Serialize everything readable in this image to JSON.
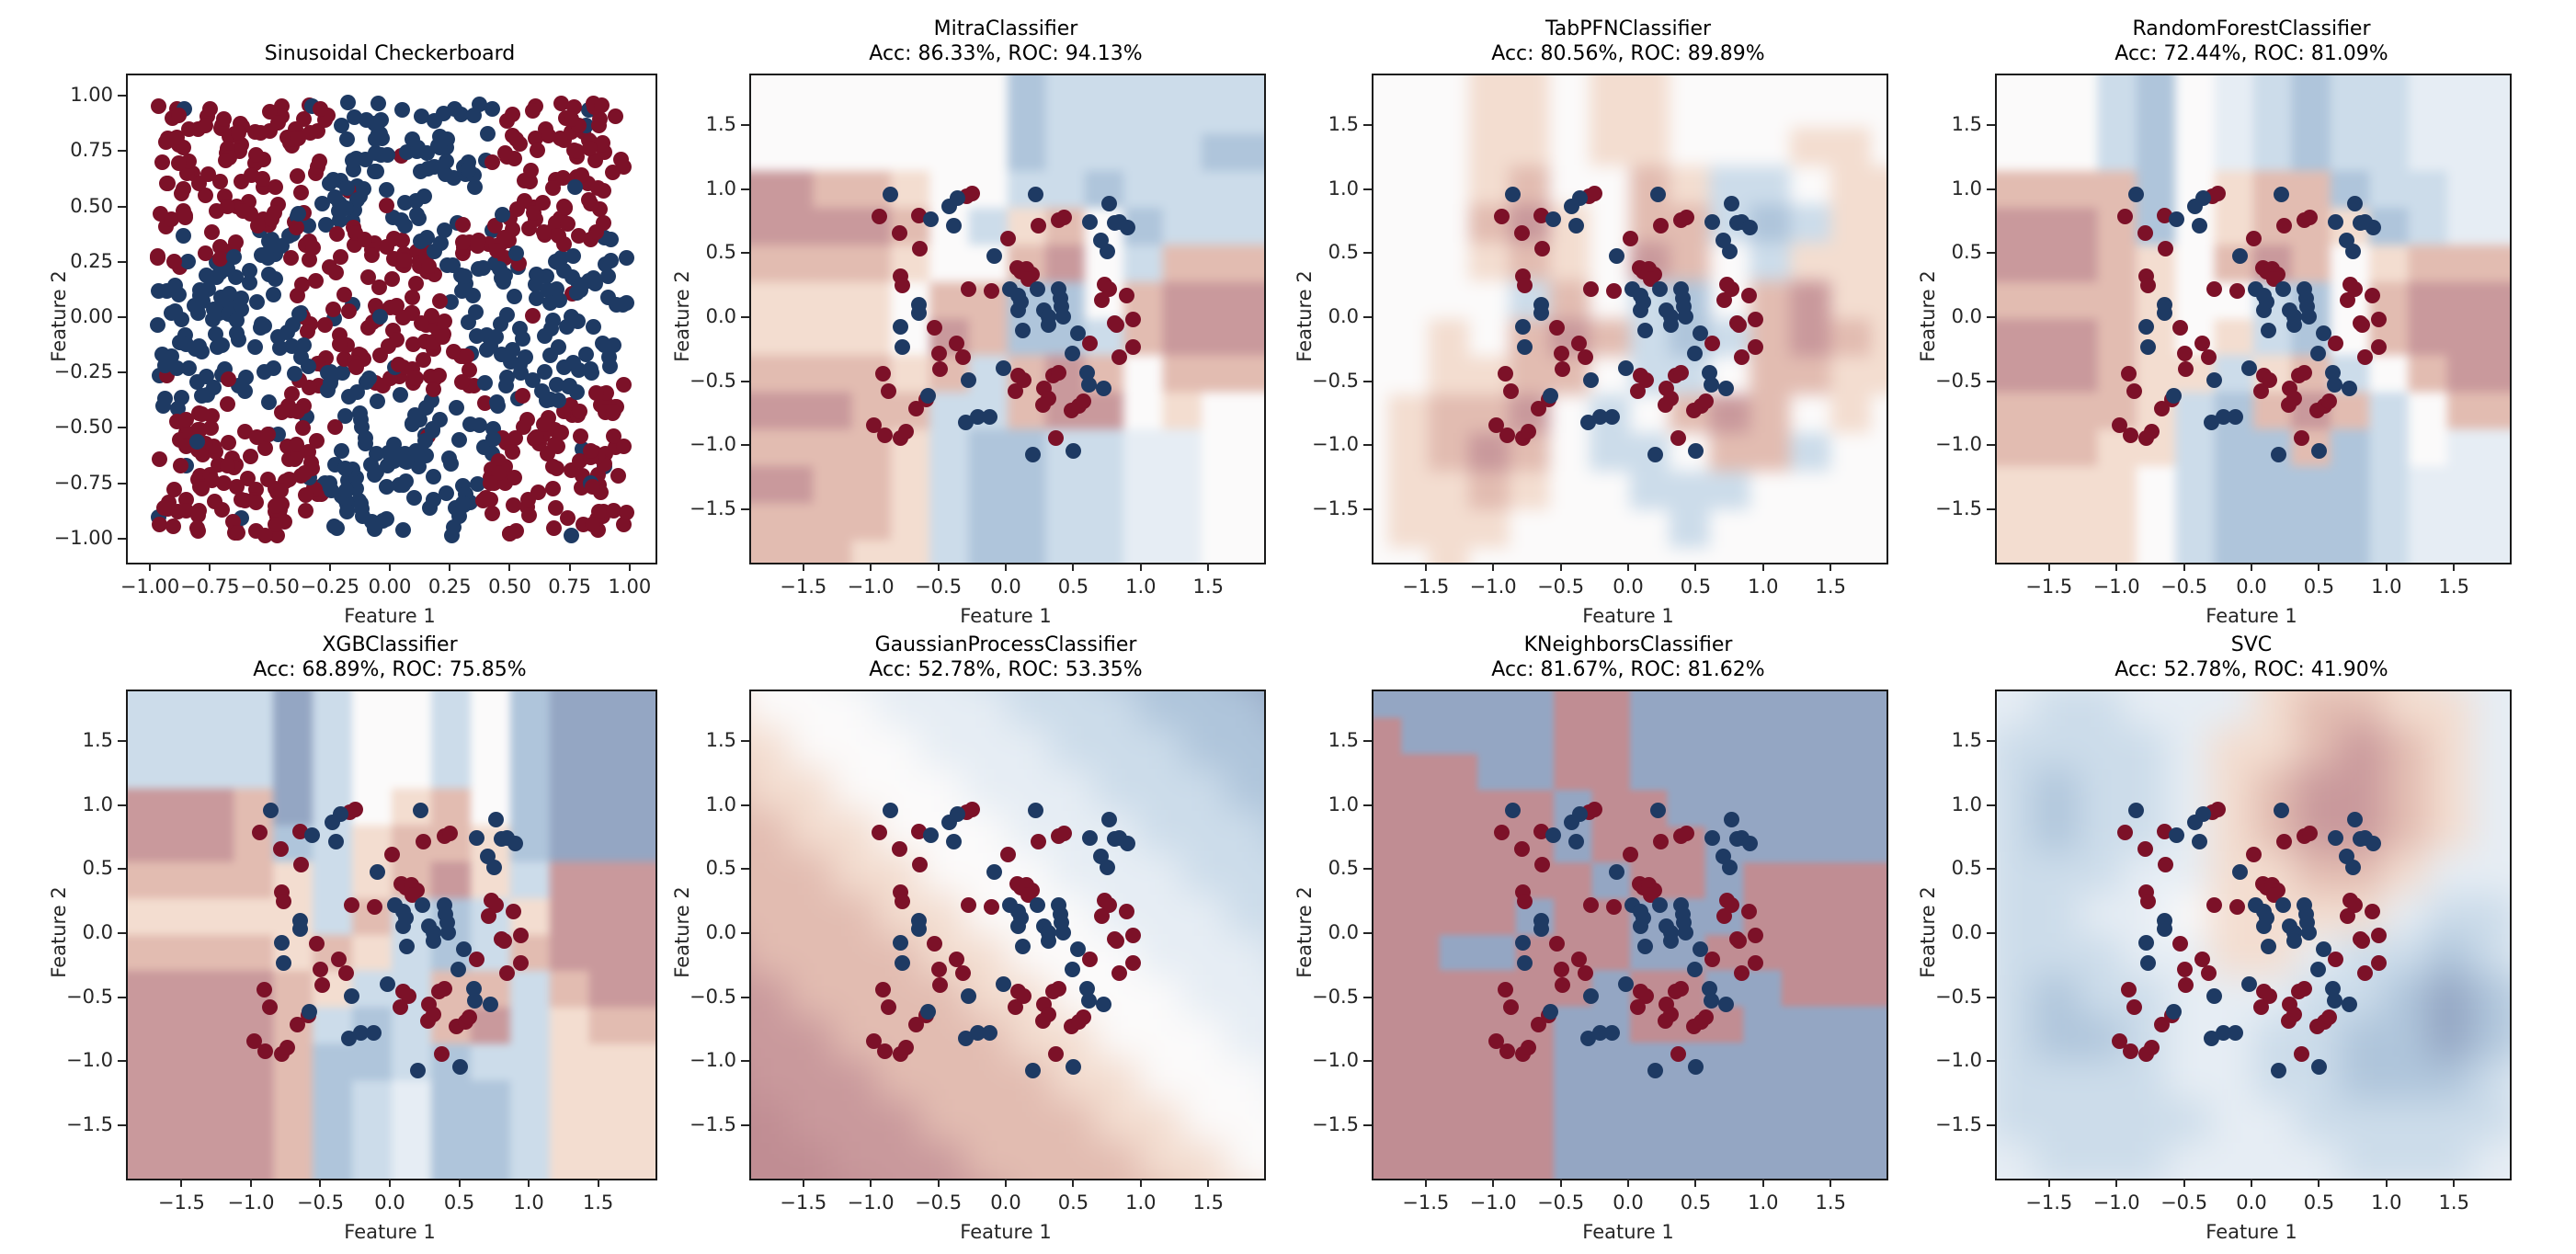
{
  "figure": {
    "background": "#ffffff"
  },
  "chart_data": {
    "type": "scatter",
    "description": "Decision-boundary comparison of classifiers on a sinusoidal checkerboard dataset; 2x4 grid of subplots. Panel 1 shows ground-truth data, panels 2-8 show each model's contourf decision surface (RdBu colormap) with the shared training points overlaid.",
    "layout": {
      "rows": 2,
      "cols": 4,
      "grid_on": false,
      "legend": "none"
    },
    "axes": {
      "xlabel": "Feature 1",
      "ylabel": "Feature 2"
    },
    "colors": {
      "class_red_dot": "#7c1128",
      "class_blue_dot": "#1e3a63",
      "colormap": "RdBu",
      "region_levels": {
        "3": "#c08d93",
        "2": "#c9999c",
        "1": "#e2bcb1",
        "0": "#f3ddd0",
        ".": "#fbfafa",
        "a": "#e6edf4",
        "b": "#ccdcea",
        "c": "#afc5db",
        "d": "#94a6c3"
      }
    },
    "truth_ticks": {
      "values": [
        -1.0,
        -0.75,
        -0.5,
        -0.25,
        0.0,
        0.25,
        0.5,
        0.75,
        1.0
      ],
      "labels": [
        "−1.00",
        "−0.75",
        "−0.50",
        "−0.25",
        "0.00",
        "0.25",
        "0.50",
        "0.75",
        "1.00"
      ]
    },
    "clf_ticks": {
      "values": [
        -1.5,
        -1.0,
        -0.5,
        0.0,
        0.5,
        1.0,
        1.5
      ],
      "labels": [
        "−1.5",
        "−1.0",
        "−0.5",
        "0.0",
        "0.5",
        "1.0",
        "1.5"
      ]
    },
    "truth_scatter_generator": {
      "n": 950,
      "seed": 11,
      "range": [
        -0.98,
        0.98
      ],
      "cells": 3,
      "wobble_amp": 0.1,
      "wobble_freq": 4.6,
      "label_noise": 0.06,
      "red_parity": "even",
      "pattern": "checkerboard with sinusoidal boundaries, classes red/blue"
    },
    "train_points": {
      "red": [
        [
          -0.3,
          0.96
        ],
        [
          -0.26,
          0.98
        ],
        [
          -0.95,
          0.8
        ],
        [
          -0.66,
          0.81
        ],
        [
          -0.8,
          0.67
        ],
        [
          -0.65,
          0.55
        ],
        [
          -0.79,
          0.33
        ],
        [
          -0.78,
          0.26
        ],
        [
          0.0,
          0.63
        ],
        [
          0.07,
          0.4
        ],
        [
          0.1,
          0.37
        ],
        [
          0.14,
          0.39
        ],
        [
          0.18,
          0.35
        ],
        [
          0.15,
          0.31
        ],
        [
          0.23,
          0.73
        ],
        [
          0.38,
          0.77
        ],
        [
          0.42,
          0.79
        ],
        [
          -0.29,
          0.23
        ],
        [
          -0.12,
          0.22
        ],
        [
          -0.54,
          -0.07
        ],
        [
          -0.51,
          -0.27
        ],
        [
          -0.38,
          -0.19
        ],
        [
          -0.33,
          -0.3
        ],
        [
          -0.5,
          -0.39
        ],
        [
          0.72,
          0.27
        ],
        [
          0.75,
          0.23
        ],
        [
          0.7,
          0.15
        ],
        [
          0.79,
          -0.03
        ],
        [
          0.88,
          0.18
        ],
        [
          0.93,
          0.0
        ],
        [
          0.81,
          -0.05
        ],
        [
          0.61,
          -0.19
        ],
        [
          0.93,
          -0.22
        ],
        [
          0.83,
          -0.3
        ],
        [
          0.34,
          -0.44
        ],
        [
          0.38,
          -0.42
        ],
        [
          0.08,
          -0.44
        ],
        [
          0.12,
          -0.48
        ],
        [
          0.06,
          -0.56
        ],
        [
          0.27,
          -0.54
        ],
        [
          0.3,
          -0.62
        ],
        [
          0.26,
          -0.67
        ],
        [
          0.47,
          -0.71
        ],
        [
          0.53,
          -0.68
        ],
        [
          0.56,
          -0.64
        ],
        [
          0.36,
          -0.93
        ],
        [
          -0.92,
          -0.43
        ],
        [
          -0.88,
          -0.56
        ],
        [
          -0.6,
          -0.63
        ],
        [
          -0.68,
          -0.7
        ],
        [
          -0.99,
          -0.83
        ],
        [
          -0.91,
          -0.91
        ],
        [
          -0.79,
          -0.93
        ],
        [
          -0.75,
          -0.88
        ]
      ],
      "blue": [
        [
          -0.87,
          0.97
        ],
        [
          -0.43,
          0.88
        ],
        [
          -0.37,
          0.94
        ],
        [
          -0.4,
          0.73
        ],
        [
          -0.57,
          0.78
        ],
        [
          -0.1,
          0.49
        ],
        [
          0.21,
          0.97
        ],
        [
          0.61,
          0.76
        ],
        [
          0.75,
          0.9
        ],
        [
          0.79,
          0.75
        ],
        [
          0.83,
          0.76
        ],
        [
          0.89,
          0.71
        ],
        [
          0.69,
          0.61
        ],
        [
          0.74,
          0.53
        ],
        [
          -0.66,
          0.11
        ],
        [
          -0.66,
          0.05
        ],
        [
          -0.79,
          -0.06
        ],
        [
          -0.78,
          -0.22
        ],
        [
          0.02,
          0.23
        ],
        [
          0.08,
          0.18
        ],
        [
          0.1,
          0.13
        ],
        [
          0.08,
          0.07
        ],
        [
          0.22,
          0.23
        ],
        [
          0.27,
          0.07
        ],
        [
          0.3,
          0.02
        ],
        [
          0.3,
          -0.05
        ],
        [
          0.38,
          0.23
        ],
        [
          0.39,
          0.16
        ],
        [
          0.4,
          0.1
        ],
        [
          0.41,
          0.02
        ],
        [
          0.11,
          -0.09
        ],
        [
          0.52,
          -0.11
        ],
        [
          0.48,
          -0.27
        ],
        [
          0.59,
          -0.42
        ],
        [
          0.6,
          -0.51
        ],
        [
          0.71,
          -0.54
        ],
        [
          -0.03,
          -0.38
        ],
        [
          -0.29,
          -0.48
        ],
        [
          -0.22,
          -0.76
        ],
        [
          -0.13,
          -0.76
        ],
        [
          -0.31,
          -0.81
        ],
        [
          0.19,
          -1.06
        ],
        [
          0.49,
          -1.03
        ],
        [
          -0.59,
          -0.6
        ]
      ]
    },
    "panels": [
      {
        "key": "truth",
        "title": "Sinusoidal Checkerboard",
        "subtitle": "",
        "xlim": [
          -1.1,
          1.1
        ],
        "ylim": [
          -1.1,
          1.1
        ],
        "ticks": "truth",
        "scatter": "generator",
        "surface": null,
        "smoothing": 0
      },
      {
        "key": "mitra",
        "title": "MitraClassifier",
        "subtitle": "Acc: 86.33%, ROC: 94.13%",
        "accuracy_pct": 86.33,
        "roc_pct": 94.13,
        "xlim": [
          -1.9,
          1.9
        ],
        "ylim": [
          -1.9,
          1.9
        ],
        "ticks": "clf",
        "scatter": "train",
        "smoothing": 5,
        "surface": [
          ".......cbbbbbb",
          ".......cbbbbbb",
          ".......cbbbbcc",
          "22110..bbcbbbb",
          "22221.b01.cbbb",
          "11110..12.b111",
          "0000.11cc.1222",
          "0000.21ccb1222",
          "111101b121.111",
          "22211bb122.0..",
          "11110bccbbaa..",
          "22110bccbbaa..",
          "11110bccbbaa..",
          "11100bccbbaa.."
        ]
      },
      {
        "key": "tabpfn",
        "title": "TabPFNClassifier",
        "subtitle": "Acc: 80.56%, ROC: 89.89%",
        "accuracy_pct": 80.56,
        "roc_pct": 89.89,
        "xlim": [
          -1.9,
          1.9
        ],
        "ylim": [
          -1.9,
          1.9
        ],
        "ticks": "clf",
        "scatter": "train",
        "smoothing": 8,
        "surface": [
          "...00.00......",
          "...00.00......",
          "...00.00...00.",
          "...01..10bb.00",
          "...120.11bcb00",
          "...010.21.b000",
          "....b1.bc.1200",
          "..0.121bcb1210",
          "..0011.bb.1100",
          ".0112.b.121.0.",
          ".0121.bb.11b..",
          ".0010..bbb....",
          ".000....b.....",
          "..0..........."
        ]
      },
      {
        "key": "randomforest",
        "title": "RandomForestClassifier",
        "subtitle": "Acc: 72.44%, ROC: 81.09%",
        "accuracy_pct": 72.44,
        "roc_pct": 81.09,
        "xlim": [
          -1.9,
          1.9
        ],
        "ylim": [
          -1.9,
          1.9
        ],
        "ticks": "clf",
        "scatter": "train",
        "smoothing": 5,
        "surface": [
          "...bc.abcbbaaa",
          "...bc.abcbbaaa",
          "...bc.abcbbaaa",
          "1111c.011cbbaa",
          "2221c.0110cbaa",
          "22210.121.0111",
          "11110..bc.1222",
          "22210.0bc.1222",
          "222100b01b.122",
          "11110bc121b.11",
          "11100bcc1cb.aa",
          "0000.bccccbaaa",
          "0000.bccccbaaa",
          "0000.bccccbaaa"
        ]
      },
      {
        "key": "xgb",
        "title": "XGBClassifier",
        "subtitle": "Acc: 68.89%, ROC: 75.85%",
        "accuracy_pct": 68.89,
        "roc_pct": 75.85,
        "xlim": [
          -1.9,
          1.9
        ],
        "ylim": [
          -1.9,
          1.9
        ],
        "ticks": "clf",
        "scatter": "train",
        "smoothing": 4,
        "surface": [
          "bbbbdb..b.cddd",
          "bbbbdb..b.cddd",
          "bbbbdb..b.cddd",
          "2221db.01.cddd",
          "2221cb0110cddd",
          "11110b0120b222",
          "00000b1bcb0222",
          "1111010bcb1222",
          "222210bb11b122",
          "22221bcb12b011",
          "22221ccbcbb000",
          "22221cbaccb000",
          "22221cbaccb000",
          "22221cbaccb000"
        ]
      },
      {
        "key": "gaussianprocess",
        "title": "GaussianProcessClassifier",
        "subtitle": "Acc: 52.78%, ROC: 53.35%",
        "accuracy_pct": 52.78,
        "roc_pct": 53.35,
        "xlim": [
          -1.9,
          1.9
        ],
        "ylim": [
          -1.9,
          1.9
        ],
        "ticks": "clf",
        "scatter": "train",
        "smoothing": 16,
        "surface": [
          "...aaabbbcccdd",
          "0...aaabbbcccd",
          "00...aaabbbccc",
          "100...aaabbbcc",
          "1100...aaabbbc",
          "11100...aaabbb",
          "111100...aaabb",
          "2111100...aaab",
          "22111100...aaa",
          "222111100...aa",
          "3222111100...a",
          "33222111100...",
          "333222111100..",
          "3333222111100."
        ]
      },
      {
        "key": "kneighbors",
        "title": "KNeighborsClassifier",
        "subtitle": "Acc: 81.67%, ROC: 81.62%",
        "accuracy_pct": 81.67,
        "roc_pct": 81.62,
        "xlim": [
          -1.9,
          1.9
        ],
        "ylim": [
          -1.9,
          1.9
        ],
        "ticks": "clf",
        "scatter": "train",
        "smoothing": 3,
        "surface": [
          "ddddd33ddddddd",
          "3dddd33ddddddd",
          "333dd33ddddddd",
          "33333d33dddddd",
          "33333d333ddddd",
          "333333d33d3333",
          "3333d33ddd3333",
          "33dd333dd33333",
          "333333d33dd333",
          "33333dd333dddd",
          "33333ddddddddd",
          "33333ddddddddd",
          "33333ddddddddd",
          "33333ddddddddd"
        ]
      },
      {
        "key": "svc",
        "title": "SVC",
        "subtitle": "Acc: 52.78%, ROC: 41.90%",
        "accuracy_pct": 52.78,
        "roc_pct": 41.9,
        "xlim": [
          -1.9,
          1.9
        ],
        "ylim": [
          -1.9,
          1.9
        ],
        "ticks": "clf",
        "scatter": "train",
        "smoothing": 16,
        "surface": [
          "aaaaaaa0000aaa",
          "aabbaaa01100aa",
          "abbbba001210aa",
          "abcbba012210aa",
          "abcbba012210aa",
          "abbbaa00110aaa",
          "abbaa.0000abba",
          "abbbaa00abbcba",
          "abcbbaaabbcdcb",
          "abccbaabbccdcb",
          "abbbbaabbcccba",
          "abbbbbaabbbbba",
          "aabbbaaaabbbaa",
          "aaaaaaaaaaaaaa"
        ]
      }
    ]
  }
}
